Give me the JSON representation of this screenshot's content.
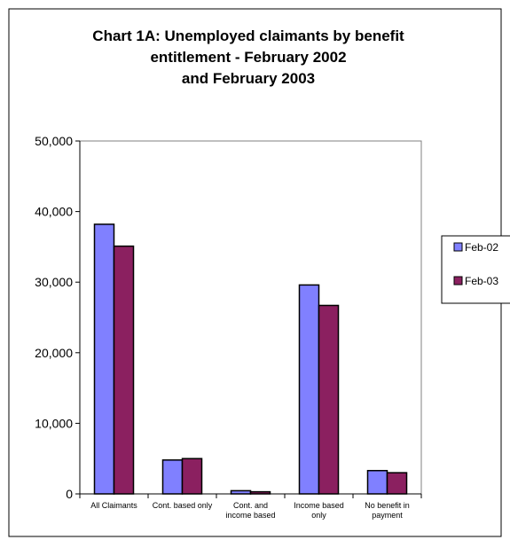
{
  "chart_data": {
    "type": "bar",
    "title_lines": [
      "Chart 1A:  Unemployed claimants by benefit",
      "entitlement - February 2002",
      "and February 2003"
    ],
    "categories": [
      [
        "All Claimants"
      ],
      [
        "Cont. based only"
      ],
      [
        "Cont. and",
        "income based"
      ],
      [
        "Income based",
        "only"
      ],
      [
        "No benefit in",
        "payment"
      ]
    ],
    "series": [
      {
        "name": "Feb-02",
        "color": "#8080ff",
        "values": [
          38200,
          4800,
          450,
          29600,
          3300
        ]
      },
      {
        "name": "Feb-03",
        "color": "#8b2060",
        "values": [
          35100,
          5000,
          300,
          26700,
          3000
        ]
      }
    ],
    "y_ticks": [
      "0",
      "10,000",
      "20,000",
      "30,000",
      "40,000",
      "50,000"
    ],
    "ylim": [
      0,
      50000
    ],
    "grid": false,
    "legend_position": "right"
  }
}
